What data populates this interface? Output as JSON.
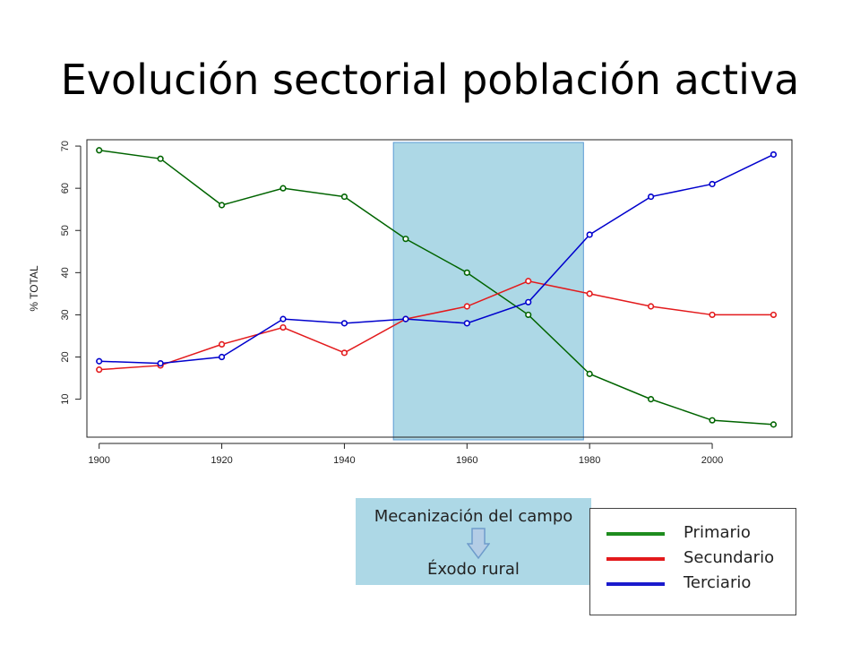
{
  "title": "Evolución sectorial población activa",
  "chart_data": {
    "type": "line",
    "title": "Evolución sectorial población activa",
    "xlabel": "",
    "ylabel": "% TOTAL",
    "x": [
      1900,
      1910,
      1920,
      1930,
      1940,
      1950,
      1960,
      1970,
      1980,
      1990,
      2000,
      2010
    ],
    "xticks": [
      1900,
      1920,
      1940,
      1960,
      1980,
      2000
    ],
    "yticks": [
      10,
      20,
      30,
      40,
      50,
      60,
      70
    ],
    "xlim": [
      1898,
      2013
    ],
    "ylim": [
      1,
      71.5
    ],
    "grid": false,
    "highlight_range": [
      1948,
      1979
    ],
    "highlight_color": "#add8e6",
    "series": [
      {
        "name": "Primario",
        "color": "#006400",
        "values": [
          69,
          67,
          56,
          60,
          58,
          48,
          40,
          30,
          16,
          10,
          5,
          4
        ]
      },
      {
        "name": "Secundario",
        "color": "#e31a1c",
        "values": [
          17,
          18,
          23,
          27,
          21,
          29,
          32,
          38,
          35,
          32,
          30,
          30
        ]
      },
      {
        "name": "Terciario",
        "color": "#0000cd",
        "values": [
          19,
          18.5,
          20,
          29,
          28,
          29,
          28,
          33,
          49,
          58,
          61,
          68
        ]
      }
    ]
  },
  "note": {
    "line1": "Mecanización del campo",
    "line2": "Éxodo rural"
  },
  "legend": {
    "items": [
      {
        "label": "Primario",
        "color": "#1e8c1e"
      },
      {
        "label": "Secundario",
        "color": "#e31a1c"
      },
      {
        "label": "Terciario",
        "color": "#1a1acd"
      }
    ]
  }
}
